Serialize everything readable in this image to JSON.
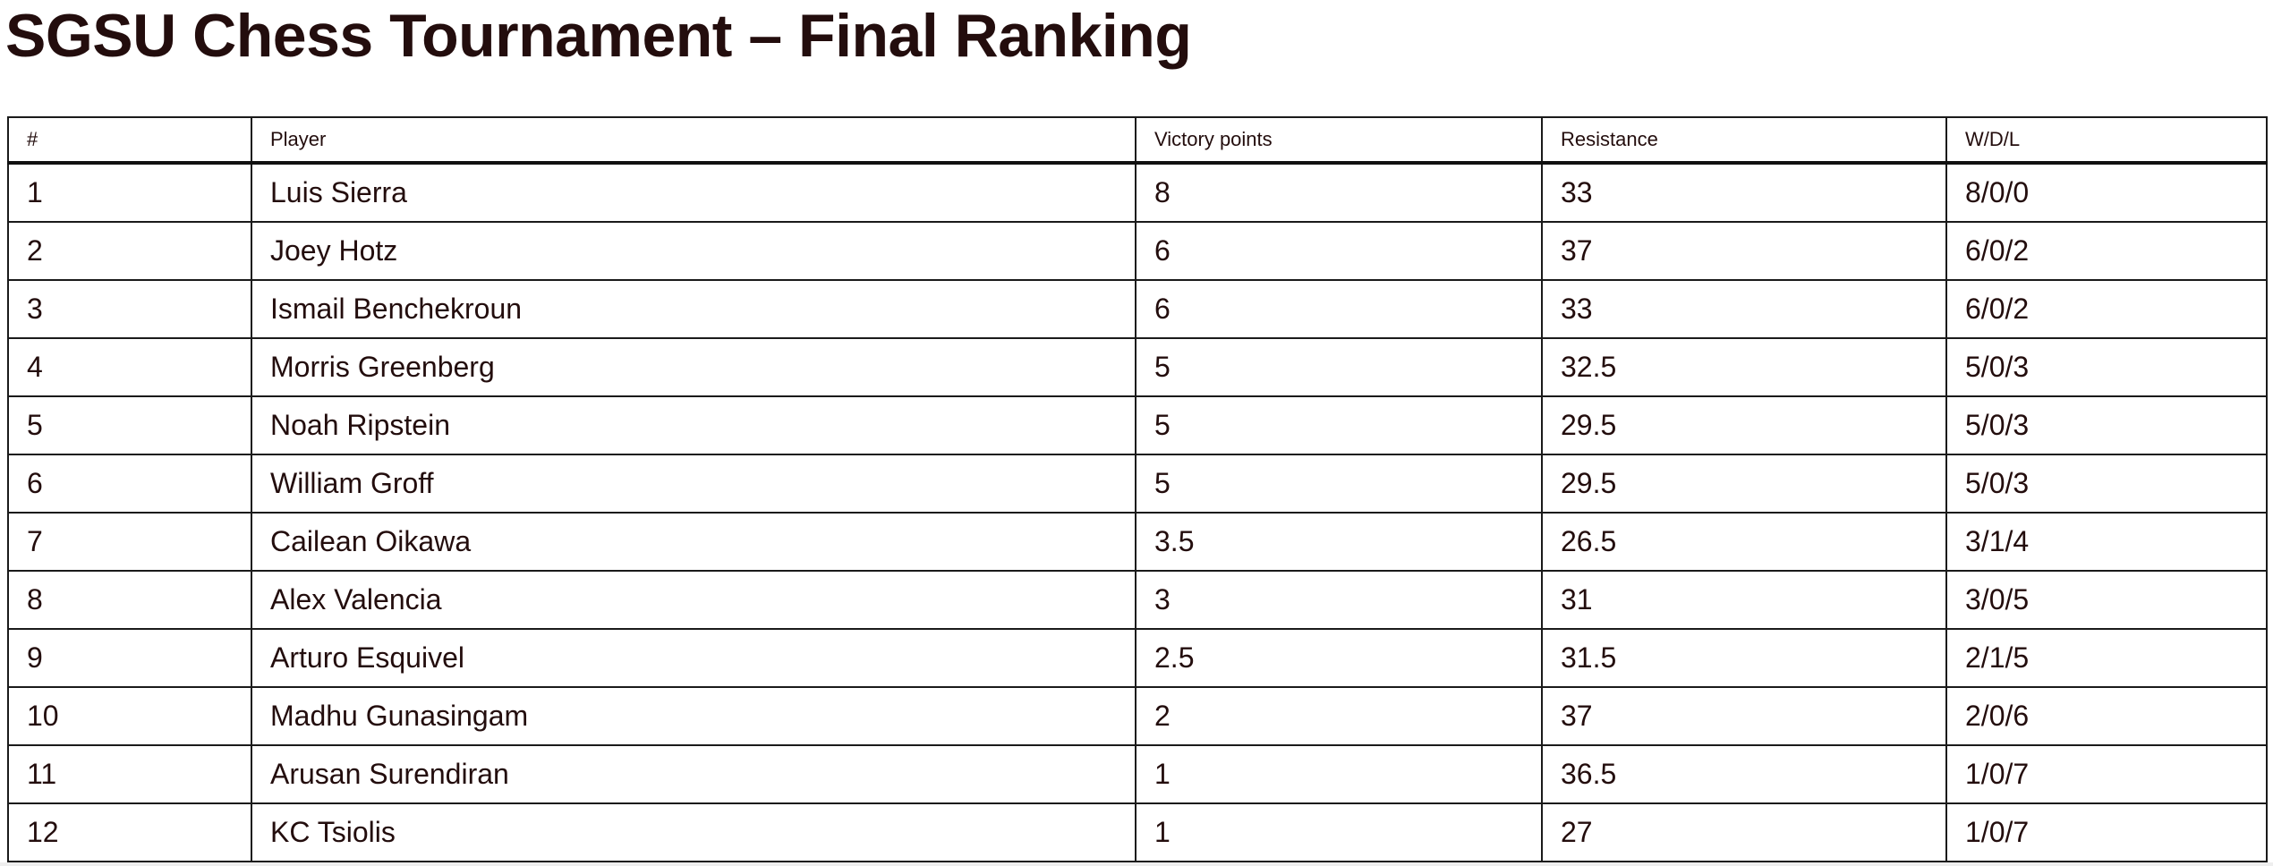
{
  "title": "SGSU Chess Tournament – Final Ranking",
  "table": {
    "columns": [
      "#",
      "Player",
      "Victory points",
      "Resistance",
      "W/D/L"
    ],
    "rows": [
      [
        "1",
        "Luis Sierra",
        "8",
        "33",
        "8/0/0"
      ],
      [
        "2",
        "Joey Hotz",
        "6",
        "37",
        "6/0/2"
      ],
      [
        "3",
        "Ismail Benchekroun",
        "6",
        "33",
        "6/0/2"
      ],
      [
        "4",
        "Morris Greenberg",
        "5",
        "32.5",
        "5/0/3"
      ],
      [
        "5",
        "Noah Ripstein",
        "5",
        "29.5",
        "5/0/3"
      ],
      [
        "6",
        "William Groff",
        "5",
        "29.5",
        "5/0/3"
      ],
      [
        "7",
        "Cailean Oikawa",
        "3.5",
        "26.5",
        "3/1/4"
      ],
      [
        "8",
        "Alex Valencia",
        "3",
        "31",
        "3/0/5"
      ],
      [
        "9",
        "Arturo Esquivel",
        "2.5",
        "31.5",
        "2/1/5"
      ],
      [
        "10",
        "Madhu Gunasingam",
        "2",
        "37",
        "2/0/6"
      ],
      [
        "11",
        "Arusan Surendiran",
        "1",
        "36.5",
        "1/0/7"
      ],
      [
        "12",
        "KC Tsiolis",
        "1",
        "27",
        "1/0/7"
      ]
    ]
  },
  "colors": {
    "text": "#230d0d",
    "border": "#1a1a1a"
  }
}
